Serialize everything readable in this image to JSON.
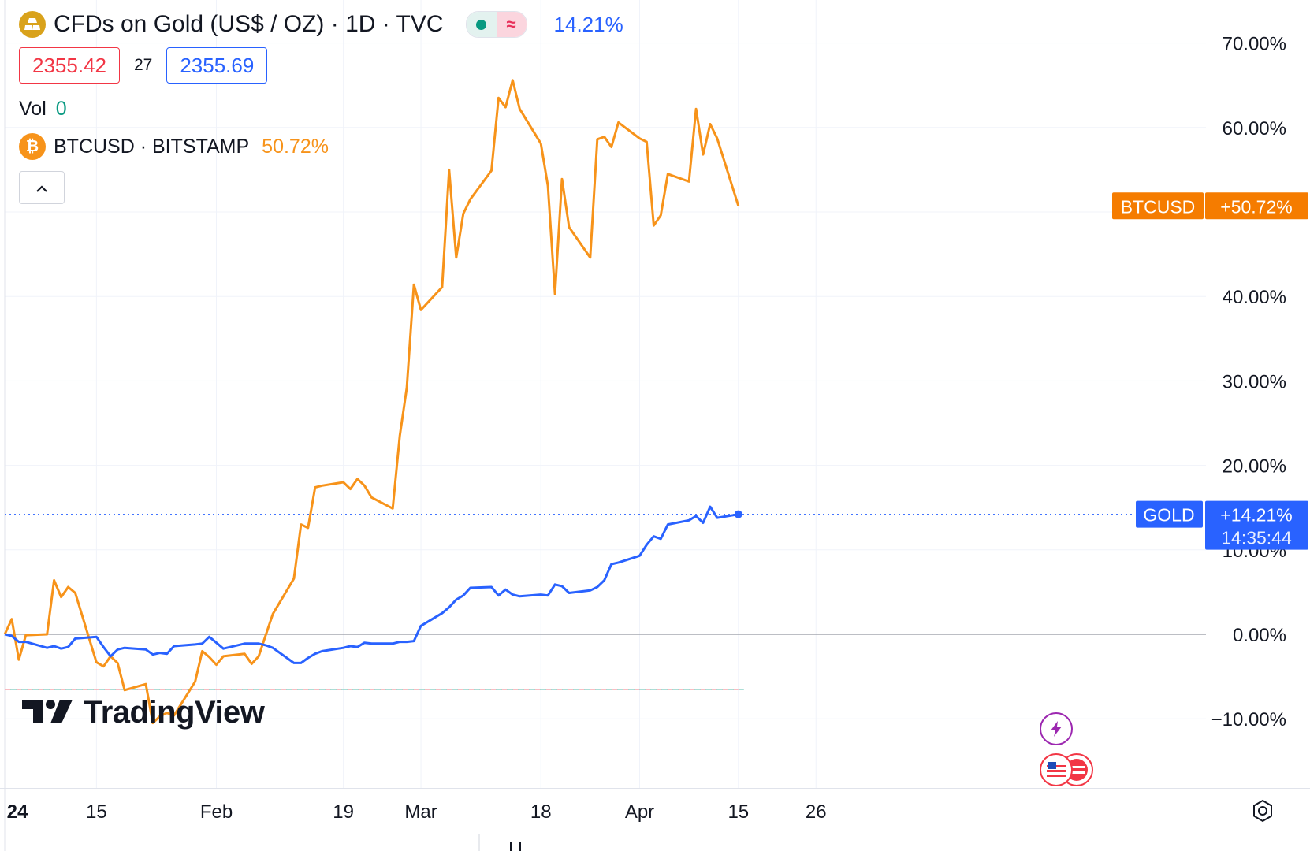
{
  "header": {
    "title": "CFDs on Gold (US$ / OZ) · 1D · TVC",
    "gold_change": "14.21%",
    "bid": "2355.42",
    "spread": "27",
    "ask": "2355.69",
    "vol_label": "Vol",
    "vol_value": "0",
    "compare_symbol": "BTCUSD · BITSTAMP",
    "compare_change": "50.72%",
    "status_icon": "wave-icon"
  },
  "branding": {
    "logo_text": "TradingView"
  },
  "colors": {
    "gold_line": "#2962ff",
    "btc_line": "#f7931a",
    "bid": "#f23645",
    "ask": "#2962ff",
    "up_green": "#089981"
  },
  "chart_data": {
    "type": "line",
    "x": [
      "2024-01-02",
      "2024-01-03",
      "2024-01-04",
      "2024-01-05",
      "2024-01-08",
      "2024-01-09",
      "2024-01-10",
      "2024-01-11",
      "2024-01-12",
      "2024-01-15",
      "2024-01-16",
      "2024-01-17",
      "2024-01-18",
      "2024-01-19",
      "2024-01-22",
      "2024-01-23",
      "2024-01-24",
      "2024-01-25",
      "2024-01-26",
      "2024-01-29",
      "2024-01-30",
      "2024-01-31",
      "2024-02-01",
      "2024-02-02",
      "2024-02-05",
      "2024-02-06",
      "2024-02-07",
      "2024-02-08",
      "2024-02-09",
      "2024-02-12",
      "2024-02-13",
      "2024-02-14",
      "2024-02-15",
      "2024-02-16",
      "2024-02-19",
      "2024-02-20",
      "2024-02-21",
      "2024-02-22",
      "2024-02-23",
      "2024-02-26",
      "2024-02-27",
      "2024-02-28",
      "2024-02-29",
      "2024-03-01",
      "2024-03-04",
      "2024-03-05",
      "2024-03-06",
      "2024-03-07",
      "2024-03-08",
      "2024-03-11",
      "2024-03-12",
      "2024-03-13",
      "2024-03-14",
      "2024-03-15",
      "2024-03-18",
      "2024-03-19",
      "2024-03-20",
      "2024-03-21",
      "2024-03-22",
      "2024-03-25",
      "2024-03-26",
      "2024-03-27",
      "2024-03-28",
      "2024-03-29",
      "2024-04-01",
      "2024-04-02",
      "2024-04-03",
      "2024-04-04",
      "2024-04-05",
      "2024-04-08",
      "2024-04-09",
      "2024-04-10",
      "2024-04-11",
      "2024-04-12",
      "2024-04-15"
    ],
    "series": [
      {
        "name": "GOLD",
        "values": [
          0.0,
          -0.2,
          -0.9,
          -0.9,
          -1.6,
          -1.4,
          -1.7,
          -1.5,
          -0.5,
          -0.3,
          -1.5,
          -2.6,
          -1.8,
          -1.6,
          -1.8,
          -2.4,
          -2.2,
          -2.3,
          -1.4,
          -1.2,
          -1.1,
          -0.3,
          -1.0,
          -1.7,
          -1.1,
          -1.1,
          -1.1,
          -1.3,
          -1.6,
          -3.4,
          -3.4,
          -2.8,
          -2.3,
          -2.0,
          -1.6,
          -1.4,
          -1.5,
          -1.0,
          -1.1,
          -1.1,
          -0.9,
          -0.9,
          -0.8,
          1.0,
          2.5,
          3.2,
          4.1,
          4.6,
          5.5,
          5.6,
          4.6,
          5.3,
          4.7,
          4.5,
          4.7,
          4.6,
          5.9,
          5.7,
          4.9,
          5.2,
          5.6,
          6.4,
          8.3,
          8.5,
          9.3,
          10.6,
          11.6,
          11.3,
          13.0,
          13.5,
          14.0,
          13.2,
          15.1,
          13.8,
          14.21
        ]
      },
      {
        "name": "BTCUSD",
        "values": [
          0.0,
          1.8,
          -3.0,
          -0.1,
          0.0,
          6.4,
          4.4,
          5.6,
          4.9,
          -3.3,
          -3.8,
          -2.6,
          -3.4,
          -6.6,
          -5.9,
          -10.5,
          -9.7,
          -9.3,
          -9.6,
          -5.6,
          -2.0,
          -2.7,
          -3.6,
          -2.6,
          -2.3,
          -3.5,
          -2.6,
          -0.1,
          2.4,
          6.6,
          13.0,
          12.6,
          17.4,
          17.6,
          18.0,
          17.2,
          18.4,
          17.6,
          16.2,
          14.9,
          23.5,
          29.2,
          41.4,
          38.4,
          41.1,
          55.0,
          44.6,
          49.8,
          51.5,
          54.9,
          63.5,
          62.4,
          65.6,
          62.2,
          58.1,
          53.1,
          40.3,
          53.9,
          48.2,
          44.6,
          58.6,
          58.9,
          57.7,
          60.6,
          58.7,
          58.3,
          48.4,
          49.6,
          54.5,
          53.6,
          62.2,
          56.8,
          60.4,
          58.7,
          50.72
        ]
      }
    ],
    "x_ticks": [
      "24",
      "15",
      "Feb",
      "19",
      "Mar",
      "18",
      "Apr",
      "15",
      "26"
    ],
    "y_ticks": [
      "70.00%",
      "60.00%",
      "40.00%",
      "30.00%",
      "20.00%",
      "10.00%",
      "0.00%",
      "−10.00%"
    ],
    "ylim": [
      -17,
      70
    ],
    "markers": {
      "btc_label": "BTCUSD",
      "btc_value": "+50.72%",
      "gold_label": "GOLD",
      "gold_value": "+14.21%",
      "countdown": "14:35:44"
    },
    "grid": true,
    "legend": "top-left"
  }
}
